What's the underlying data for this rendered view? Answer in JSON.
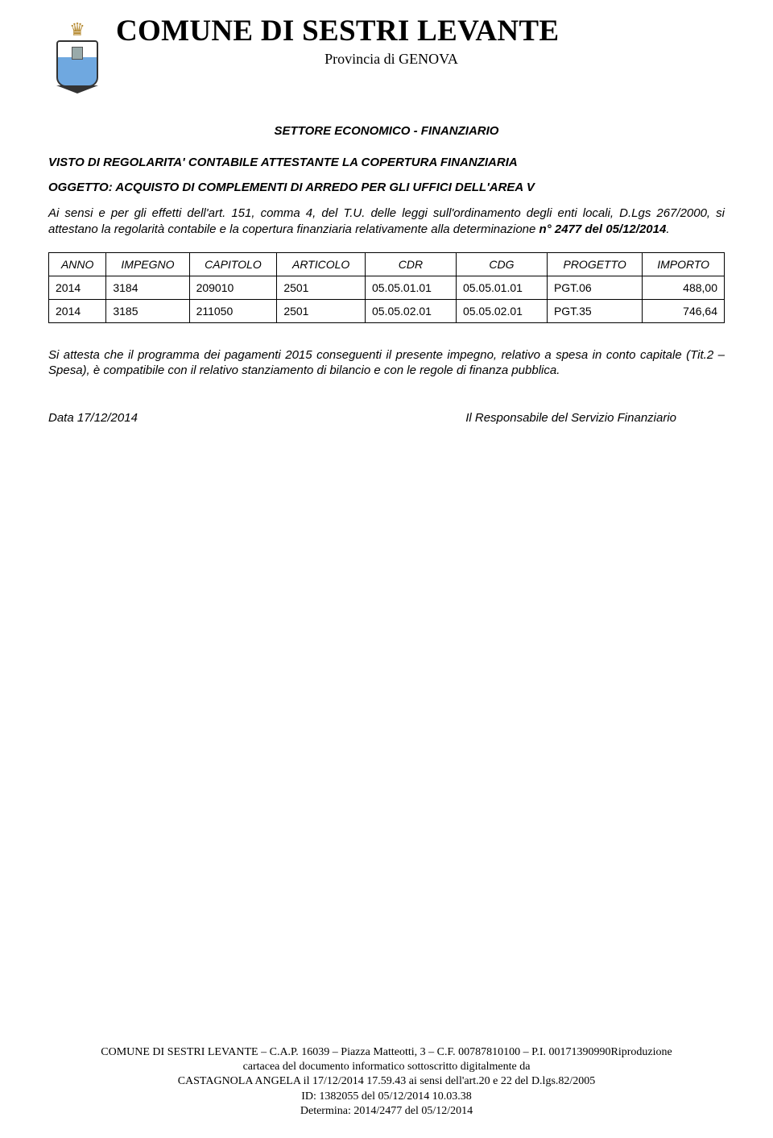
{
  "header": {
    "org_title": "COMUNE DI SESTRI LEVANTE",
    "org_subtitle": "Provincia di GENOVA",
    "section_header": "SETTORE ECONOMICO - FINANZIARIO",
    "visto_line": "VISTO DI REGOLARITA' CONTABILE ATTESTANTE LA COPERTURA FINANZIARIA",
    "oggetto_label": "OGGETTO:",
    "oggetto_text": "ACQUISTO DI COMPLEMENTI DI ARREDO PER GLI UFFICI DELL'AREA V"
  },
  "body": {
    "para1_prefix": "Ai sensi e per gli effetti dell'art. 151, comma 4, del T.U. delle leggi sull'ordinamento degli enti locali, D.Lgs 267/2000, si attestano la regolarità contabile e la copertura finanziaria relativamente alla determinazione ",
    "para1_bold": "n° 2477 del 05/12/2014",
    "para1_suffix": "."
  },
  "table": {
    "columns": [
      "ANNO",
      "IMPEGNO",
      "CAPITOLO",
      "ARTICOLO",
      "CDR",
      "CDG",
      "PROGETTO",
      "IMPORTO"
    ],
    "col_align": [
      "left",
      "left",
      "left",
      "left",
      "left",
      "left",
      "left",
      "right"
    ],
    "rows": [
      [
        "2014",
        "3184",
        "209010",
        "2501",
        "05.05.01.01",
        "05.05.01.01",
        "PGT.06",
        "488,00"
      ],
      [
        "2014",
        "3185",
        "211050",
        "2501",
        "05.05.02.01",
        "05.05.02.01",
        "PGT.35",
        "746,64"
      ]
    ]
  },
  "attestation": "Si attesta che il programma dei pagamenti 2015 conseguenti il presente impegno, relativo a spesa in conto capitale (Tit.2 – Spesa), è compatibile con il relativo stanziamento di bilancio e con le regole di finanza pubblica.",
  "signature": {
    "date_label": "Data 17/12/2014",
    "role": "Il Responsabile del Servizio Finanziario"
  },
  "footer": {
    "line1": "COMUNE DI SESTRI LEVANTE – C.A.P. 16039 – Piazza Matteotti, 3 – C.F. 00787810100 – P.I. 00171390990Riproduzione",
    "line2": "cartacea del documento informatico sottoscritto digitalmente da",
    "line3": "CASTAGNOLA ANGELA il 17/12/2014 17.59.43 ai sensi dell'art.20 e 22 del D.lgs.82/2005",
    "line4": "ID: 1382055 del 05/12/2014 10.03.38",
    "line5": "Determina: 2014/2477 del 05/12/2014"
  }
}
